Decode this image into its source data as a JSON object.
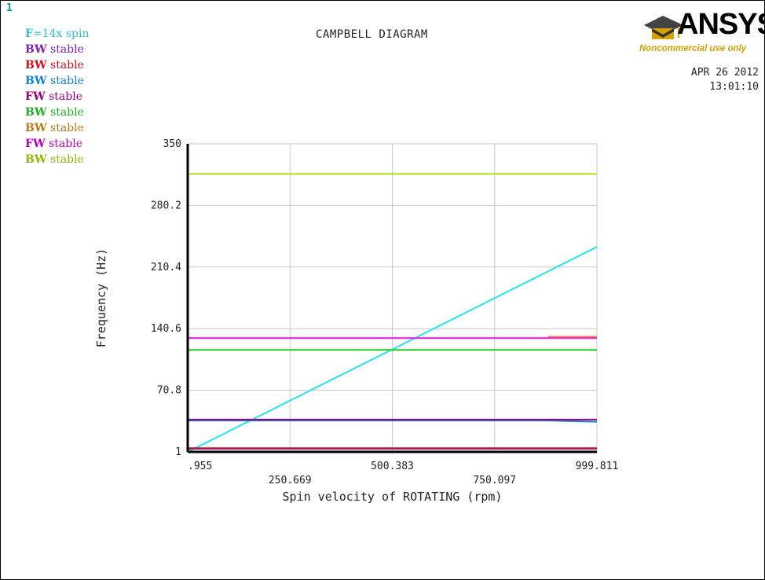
{
  "window_number": "1",
  "header": {
    "title": "CAMPBELL DIAGRAM",
    "date": "APR 26 2012",
    "time": "13:01:10"
  },
  "logo": {
    "brand": "ANSYS",
    "subtext": "Noncommercial use only"
  },
  "legend": [
    {
      "prefix": "F",
      "text": "=14x spin",
      "color": "#30c0d0"
    },
    {
      "prefix": "BW",
      "text": " stable",
      "color": "#8020c0"
    },
    {
      "prefix": "BW",
      "text": " stable",
      "color": "#d01020"
    },
    {
      "prefix": "BW",
      "text": " stable",
      "color": "#1080d0"
    },
    {
      "prefix": "FW",
      "text": " stable",
      "color": "#a0007a"
    },
    {
      "prefix": "BW",
      "text": " stable",
      "color": "#20b020"
    },
    {
      "prefix": "BW",
      "text": " stable",
      "color": "#c07818"
    },
    {
      "prefix": "FW",
      "text": " stable",
      "color": "#c000c0"
    },
    {
      "prefix": "BW",
      "text": " stable",
      "color": "#90b800"
    }
  ],
  "chart_data": {
    "type": "line",
    "title": "CAMPBELL DIAGRAM",
    "xlabel": "Spin velocity of ROTATING (rpm)",
    "ylabel": "Frequency (Hz)",
    "xlim": [
      0.955,
      999.811
    ],
    "ylim": [
      1,
      350
    ],
    "xticks": [
      ".955",
      "250.669",
      "500.383",
      "750.097",
      "999.811"
    ],
    "yticks": [
      "1",
      "70.8",
      "140.6",
      "210.4",
      "280.2",
      "350"
    ],
    "grid": true,
    "legend_position": "top-left",
    "series": [
      {
        "name": "F=14x spin",
        "color": "#20e8e8",
        "x": [
          0.955,
          999.811
        ],
        "y": [
          1,
          233.2
        ]
      },
      {
        "name": "BW stable",
        "color": "#8020c0",
        "x": [
          0.955,
          999.811
        ],
        "y": [
          4.5,
          4.5
        ]
      },
      {
        "name": "BW stable",
        "color": "#d01020",
        "x": [
          0.955,
          999.811
        ],
        "y": [
          5.2,
          5.2
        ]
      },
      {
        "name": "BW stable",
        "color": "#1080d0",
        "x": [
          0.955,
          880,
          999.811
        ],
        "y": [
          36.5,
          36.5,
          35.2
        ]
      },
      {
        "name": "FW stable",
        "color": "#a0007a",
        "x": [
          0.955,
          999.811
        ],
        "y": [
          37.6,
          37.6
        ]
      },
      {
        "name": "BW stable",
        "color": "#20d020",
        "x": [
          0.955,
          999.811
        ],
        "y": [
          116.5,
          116.5
        ]
      },
      {
        "name": "BW stable",
        "color": "#e09030",
        "x": [
          880,
          999.811
        ],
        "y": [
          131.5,
          131.5
        ]
      },
      {
        "name": "FW stable",
        "color": "#ff10ff",
        "x": [
          0.955,
          999.811
        ],
        "y": [
          130.0,
          130.0
        ]
      },
      {
        "name": "BW stable",
        "color": "#b0e020",
        "x": [
          0.955,
          999.811
        ],
        "y": [
          316.0,
          316.0
        ]
      }
    ]
  }
}
